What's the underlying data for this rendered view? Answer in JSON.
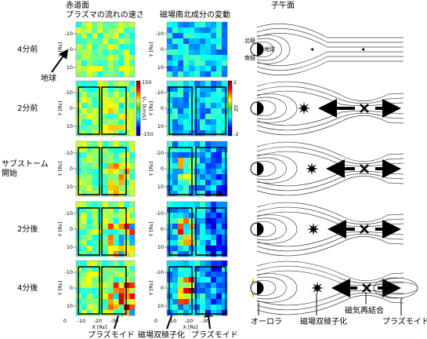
{
  "headers": {
    "equatorial": "赤道面",
    "flow_speed": "プラズマの流れの速さ",
    "bz_change": "磁場南北成分の変動",
    "meridional": "子午面"
  },
  "rows": [
    [
      "4分前"
    ],
    [
      "2分前"
    ],
    [
      "サブストーム",
      "開始"
    ],
    [
      "2分後"
    ],
    [
      "4分後"
    ]
  ],
  "axes": {
    "y_label": "Y [Rᴇ]",
    "x_label": "X [Rᴇ]",
    "y_ticks": [
      "-10",
      "0",
      "10"
    ],
    "x_ticks": [
      "0",
      "-10",
      "-20",
      "-30"
    ]
  },
  "colorbars": {
    "vx": {
      "max": "150",
      "min": "-150",
      "label": "Vₓ [km/s]"
    },
    "dz": {
      "max": "2",
      "min": "-2",
      "label": "dZ"
    }
  },
  "annotations": {
    "earth": "地球",
    "north_pole": "北極",
    "south_pole": "南極",
    "earth_small": "地球",
    "plasmoid_left": "プラズモイド",
    "dipolarization_mid": "磁場双極子化",
    "plasmoid_mid": "プラズモイド",
    "aurora": "オーロラ",
    "dipolarization_right": "磁場双極子化",
    "reconnection": "磁気再結合",
    "plasmoid_right": "プラズモイド"
  }
}
